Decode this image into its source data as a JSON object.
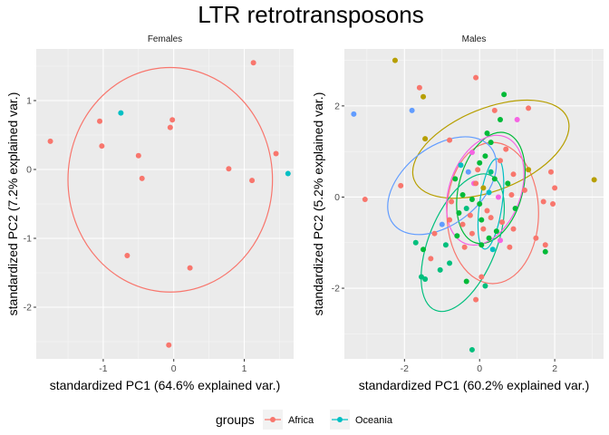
{
  "chart_data": {
    "type": "scatter",
    "title": "LTR retrotransposons",
    "legend": {
      "title": "groups",
      "position": "bottom",
      "entries": [
        {
          "name": "Africa",
          "color": "#F8766D"
        },
        {
          "name": "Oceania",
          "color": "#00BFC4"
        }
      ]
    },
    "extra_group_colors": {
      "olive": "#B79F00",
      "green": "#00BA38",
      "teal": "#00BF7D",
      "blue": "#619CFF",
      "magenta": "#F564E3"
    },
    "panels": [
      {
        "strip": "Females",
        "xlabel": "standardized PC1 (64.6% explained var.)",
        "ylabel": "standardized PC2 (7.2% explained var.)",
        "xlim": [
          -1.95,
          1.7
        ],
        "ylim": [
          -2.75,
          1.75
        ],
        "xticks": [
          -1,
          0,
          1
        ],
        "xtick_labels": [
          "-1",
          "0",
          "1"
        ],
        "yticks": [
          -2,
          -1,
          0,
          1
        ],
        "ytick_labels": [
          "-2",
          "-1",
          "0",
          "1"
        ],
        "points": [
          {
            "x": -1.75,
            "y": 0.41,
            "c": "#F8766D"
          },
          {
            "x": -1.05,
            "y": 0.7,
            "c": "#F8766D"
          },
          {
            "x": -1.02,
            "y": 0.34,
            "c": "#F8766D"
          },
          {
            "x": -0.75,
            "y": 0.82,
            "c": "#00BFC4"
          },
          {
            "x": -0.5,
            "y": 0.2,
            "c": "#F8766D"
          },
          {
            "x": -0.45,
            "y": -0.13,
            "c": "#F8766D"
          },
          {
            "x": -0.66,
            "y": -1.25,
            "c": "#F8766D"
          },
          {
            "x": -0.05,
            "y": 0.61,
            "c": "#F8766D"
          },
          {
            "x": -0.02,
            "y": 0.72,
            "c": "#F8766D"
          },
          {
            "x": 0.23,
            "y": -1.43,
            "c": "#F8766D"
          },
          {
            "x": 0.78,
            "y": 0.01,
            "c": "#F8766D"
          },
          {
            "x": 1.13,
            "y": 1.55,
            "c": "#F8766D"
          },
          {
            "x": 1.11,
            "y": -0.16,
            "c": "#F8766D"
          },
          {
            "x": 1.45,
            "y": 0.23,
            "c": "#F8766D"
          },
          {
            "x": 1.62,
            "y": -0.06,
            "c": "#00BFC4"
          },
          {
            "x": -0.07,
            "y": -2.55,
            "c": "#F8766D"
          }
        ],
        "ellipses": [
          {
            "cx": -0.05,
            "cy": -0.15,
            "rx": 1.45,
            "ry": 1.63,
            "angle": 0,
            "c": "#F8766D"
          }
        ]
      },
      {
        "strip": "Males",
        "xlabel": "standardized PC1 (60.2% explained var.)",
        "ylabel": "standardized PC2 (5.2% explained var.)",
        "xlim": [
          -3.6,
          3.3
        ],
        "ylim": [
          -3.55,
          3.25
        ],
        "xticks": [
          -2,
          0,
          2
        ],
        "xtick_labels": [
          "-2",
          "0",
          "2"
        ],
        "yticks": [
          -2,
          0,
          2
        ],
        "ytick_labels": [
          "-2",
          "0",
          "2"
        ],
        "points": [
          {
            "x": -2.25,
            "y": 3.0,
            "c": "#B79F00"
          },
          {
            "x": -1.6,
            "y": 2.4,
            "c": "#F8766D"
          },
          {
            "x": -1.5,
            "y": 2.2,
            "c": "#B79F00"
          },
          {
            "x": -1.8,
            "y": 1.9,
            "c": "#619CFF"
          },
          {
            "x": -3.35,
            "y": 1.82,
            "c": "#619CFF"
          },
          {
            "x": -0.1,
            "y": 2.62,
            "c": "#F8766D"
          },
          {
            "x": 0.65,
            "y": 2.25,
            "c": "#00BA38"
          },
          {
            "x": 1.3,
            "y": 1.95,
            "c": "#F8766D"
          },
          {
            "x": 0.4,
            "y": 1.9,
            "c": "#F8766D"
          },
          {
            "x": 1.0,
            "y": 1.7,
            "c": "#F564E3"
          },
          {
            "x": 0.55,
            "y": 1.7,
            "c": "#00BA38"
          },
          {
            "x": -1.45,
            "y": 1.28,
            "c": "#B79F00"
          },
          {
            "x": -0.8,
            "y": 1.25,
            "c": "#F8766D"
          },
          {
            "x": 0.3,
            "y": 1.2,
            "c": "#00BA38"
          },
          {
            "x": 0.7,
            "y": 1.05,
            "c": "#F8766D"
          },
          {
            "x": -0.2,
            "y": 0.98,
            "c": "#F564E3"
          },
          {
            "x": 0.15,
            "y": 0.9,
            "c": "#00BA38"
          },
          {
            "x": -0.5,
            "y": 0.7,
            "c": "#00BFC4"
          },
          {
            "x": 0.0,
            "y": 0.75,
            "c": "#00BA38"
          },
          {
            "x": 0.55,
            "y": 0.8,
            "c": "#F8766D"
          },
          {
            "x": 0.3,
            "y": 0.55,
            "c": "#00BF7D"
          },
          {
            "x": -0.3,
            "y": 0.55,
            "c": "#619CFF"
          },
          {
            "x": 0.9,
            "y": 0.5,
            "c": "#F8766D"
          },
          {
            "x": 1.3,
            "y": 0.6,
            "c": "#B79F00"
          },
          {
            "x": -0.05,
            "y": 0.6,
            "c": "#F8766D"
          },
          {
            "x": 1.9,
            "y": 0.55,
            "c": "#F8766D"
          },
          {
            "x": -0.65,
            "y": 0.4,
            "c": "#00BA38"
          },
          {
            "x": -0.15,
            "y": 0.3,
            "c": "#F564E3"
          },
          {
            "x": 0.4,
            "y": 0.4,
            "c": "#00BA38"
          },
          {
            "x": 0.75,
            "y": 0.3,
            "c": "#00BA38"
          },
          {
            "x": 0.1,
            "y": 0.2,
            "c": "#B79F00"
          },
          {
            "x": 1.2,
            "y": 0.15,
            "c": "#F8766D"
          },
          {
            "x": 2.0,
            "y": 0.2,
            "c": "#F8766D"
          },
          {
            "x": -2.1,
            "y": 0.25,
            "c": "#F8766D"
          },
          {
            "x": -0.45,
            "y": 0.05,
            "c": "#00BA38"
          },
          {
            "x": 0.25,
            "y": 0.1,
            "c": "#00BFC4"
          },
          {
            "x": 0.5,
            "y": 0.0,
            "c": "#F564E3"
          },
          {
            "x": 0.85,
            "y": 0.05,
            "c": "#F8766D"
          },
          {
            "x": -3.05,
            "y": -0.05,
            "c": "#F8766D"
          },
          {
            "x": -0.75,
            "y": -0.1,
            "c": "#F8766D"
          },
          {
            "x": -0.2,
            "y": -0.05,
            "c": "#00BA38"
          },
          {
            "x": 0.0,
            "y": -0.15,
            "c": "#00BA38"
          },
          {
            "x": 1.7,
            "y": -0.1,
            "c": "#F8766D"
          },
          {
            "x": 1.95,
            "y": -0.15,
            "c": "#F8766D"
          },
          {
            "x": -0.35,
            "y": -0.25,
            "c": "#00BF7D"
          },
          {
            "x": 0.2,
            "y": -0.3,
            "c": "#F8766D"
          },
          {
            "x": -0.55,
            "y": -0.35,
            "c": "#00BA38"
          },
          {
            "x": -0.25,
            "y": -0.4,
            "c": "#F8766D"
          },
          {
            "x": 0.05,
            "y": -0.5,
            "c": "#00BA38"
          },
          {
            "x": 0.3,
            "y": -0.45,
            "c": "#F8766D"
          },
          {
            "x": 0.6,
            "y": -0.55,
            "c": "#F8766D"
          },
          {
            "x": -0.8,
            "y": -0.5,
            "c": "#F8766D"
          },
          {
            "x": -1.0,
            "y": -0.6,
            "c": "#619CFF"
          },
          {
            "x": -0.45,
            "y": -0.6,
            "c": "#F8766D"
          },
          {
            "x": 0.1,
            "y": -0.7,
            "c": "#F8766D"
          },
          {
            "x": 0.45,
            "y": -0.75,
            "c": "#00BA38"
          },
          {
            "x": 0.9,
            "y": -0.7,
            "c": "#F8766D"
          },
          {
            "x": -1.2,
            "y": -0.8,
            "c": "#F8766D"
          },
          {
            "x": -0.6,
            "y": -0.85,
            "c": "#00BA38"
          },
          {
            "x": -0.2,
            "y": -0.8,
            "c": "#F8766D"
          },
          {
            "x": 0.25,
            "y": -0.9,
            "c": "#00BA38"
          },
          {
            "x": 0.55,
            "y": -0.95,
            "c": "#F564E3"
          },
          {
            "x": 1.5,
            "y": -0.9,
            "c": "#F8766D"
          },
          {
            "x": -0.9,
            "y": -1.05,
            "c": "#00BF7D"
          },
          {
            "x": -0.4,
            "y": -1.1,
            "c": "#F8766D"
          },
          {
            "x": 0.05,
            "y": -1.05,
            "c": "#00BA38"
          },
          {
            "x": 0.35,
            "y": -1.15,
            "c": "#00BFC4"
          },
          {
            "x": 0.8,
            "y": -1.1,
            "c": "#F8766D"
          },
          {
            "x": -1.7,
            "y": -1.0,
            "c": "#00BF7D"
          },
          {
            "x": -1.5,
            "y": -1.15,
            "c": "#00BA38"
          },
          {
            "x": 1.75,
            "y": -1.05,
            "c": "#F8766D"
          },
          {
            "x": 1.75,
            "y": -1.2,
            "c": "#00BA38"
          },
          {
            "x": -1.3,
            "y": -1.35,
            "c": "#F8766D"
          },
          {
            "x": -0.8,
            "y": -1.45,
            "c": "#00BF7D"
          },
          {
            "x": -1.05,
            "y": -1.6,
            "c": "#00BF7D"
          },
          {
            "x": -1.55,
            "y": -1.75,
            "c": "#00BF7D"
          },
          {
            "x": -1.45,
            "y": -1.8,
            "c": "#00BF7D"
          },
          {
            "x": 0.05,
            "y": -1.75,
            "c": "#F8766D"
          },
          {
            "x": -0.35,
            "y": -1.85,
            "c": "#00BA38"
          },
          {
            "x": 0.15,
            "y": -1.95,
            "c": "#00BF7D"
          },
          {
            "x": -0.1,
            "y": -2.25,
            "c": "#F8766D"
          },
          {
            "x": -0.2,
            "y": -3.35,
            "c": "#00BF7D"
          },
          {
            "x": 3.05,
            "y": 0.38,
            "c": "#B79F00"
          },
          {
            "x": 0.95,
            "y": -0.25,
            "c": "#00BA38"
          },
          {
            "x": -0.1,
            "y": 0.3,
            "c": "#F8766D"
          },
          {
            "x": 0.2,
            "y": 1.4,
            "c": "#00BA38"
          }
        ],
        "ellipses": [
          {
            "cx": 0.35,
            "cy": -0.35,
            "rx": 1.22,
            "ry": 1.55,
            "angle": 0,
            "c": "#F8766D"
          },
          {
            "cx": 0.3,
            "cy": 1.05,
            "rx": 2.2,
            "ry": 0.9,
            "angle": -22,
            "c": "#B79F00"
          },
          {
            "cx": 0.3,
            "cy": 0.2,
            "rx": 0.85,
            "ry": 1.25,
            "angle": 15,
            "c": "#00BA38"
          },
          {
            "cx": -0.45,
            "cy": -1.0,
            "rx": 0.9,
            "ry": 1.6,
            "angle": 22,
            "c": "#00BF7D"
          },
          {
            "cx": 0.3,
            "cy": -0.15,
            "rx": 0.3,
            "ry": 1.0,
            "angle": 8,
            "c": "#00BFC4"
          },
          {
            "cx": -1.0,
            "cy": 0.25,
            "rx": 1.65,
            "ry": 0.85,
            "angle": -38,
            "c": "#619CFF"
          },
          {
            "cx": 0.15,
            "cy": 0.15,
            "rx": 0.95,
            "ry": 1.25,
            "angle": 20,
            "c": "#F564E3"
          }
        ]
      }
    ]
  }
}
